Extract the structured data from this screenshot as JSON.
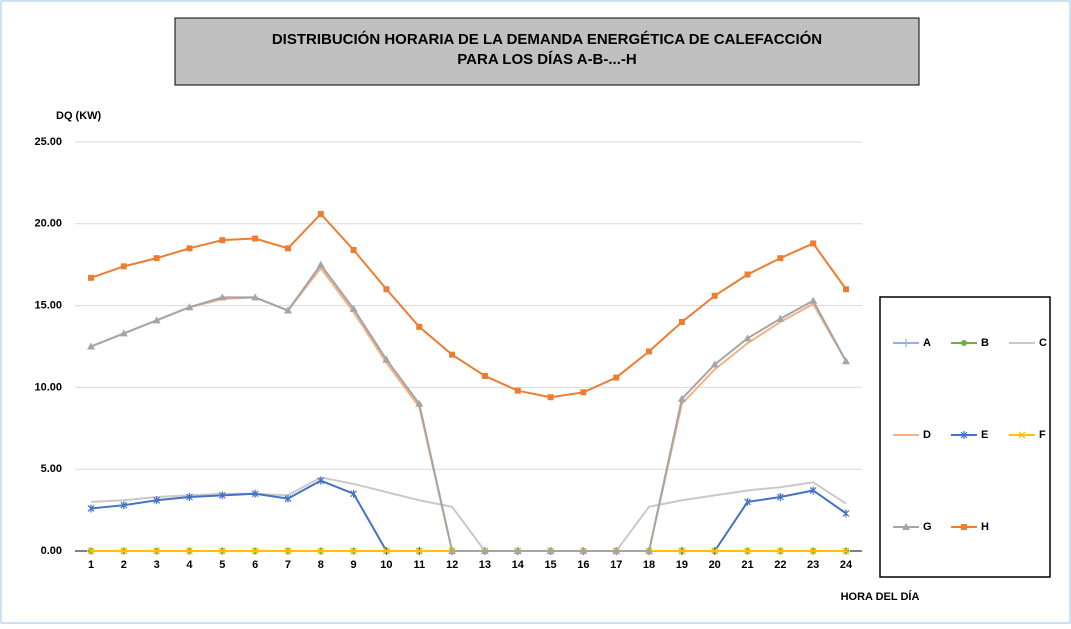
{
  "chart_data": {
    "type": "line",
    "title": [
      "DISTRIBUCIÓN HORARIA DE LA DEMANDA ENERGÉTICA DE CALEFACCIÓN",
      "PARA LOS DÍAS A-B-...-H"
    ],
    "y_label": "DQ (KW)",
    "x_label": "HORA DEL DÍA",
    "categories": [
      "1",
      "2",
      "3",
      "4",
      "5",
      "6",
      "7",
      "8",
      "9",
      "10",
      "11",
      "12",
      "13",
      "14",
      "15",
      "16",
      "17",
      "18",
      "19",
      "20",
      "21",
      "22",
      "23",
      "24"
    ],
    "ylim": [
      0,
      25
    ],
    "yticks": [
      {
        "value": 0,
        "label": "0.00"
      },
      {
        "value": 5,
        "label": "5.00"
      },
      {
        "value": 10,
        "label": "10.00"
      },
      {
        "value": 15,
        "label": "15.00"
      },
      {
        "value": 20,
        "label": "20.00"
      },
      {
        "value": 25,
        "label": "25.00"
      }
    ],
    "grid": true,
    "series": [
      {
        "name": "A",
        "color": "#8db4e2",
        "marker": "plus",
        "values": [
          0,
          0,
          0,
          0,
          0,
          0,
          0,
          0,
          0,
          0,
          0,
          0,
          0,
          0,
          0,
          0,
          0,
          0,
          0,
          0,
          0,
          0,
          0,
          0
        ]
      },
      {
        "name": "B",
        "color": "#70ad47",
        "marker": "circle",
        "values": [
          0,
          0,
          0,
          0,
          0,
          0,
          0,
          0,
          0,
          0,
          0,
          0,
          0,
          0,
          0,
          0,
          0,
          0,
          0,
          0,
          0,
          0,
          0,
          0
        ]
      },
      {
        "name": "C",
        "color": "#c9c9c9",
        "marker": "none",
        "values": [
          3.0,
          3.1,
          3.3,
          3.4,
          3.5,
          3.5,
          3.4,
          4.5,
          4.1,
          3.6,
          3.1,
          2.7,
          0,
          0,
          0,
          0,
          0,
          2.7,
          3.1,
          3.4,
          3.7,
          3.9,
          4.2,
          2.9
        ]
      },
      {
        "name": "D",
        "color": "#f4b183",
        "marker": "none",
        "values": [
          12.5,
          13.3,
          14.1,
          14.9,
          15.4,
          15.5,
          14.7,
          17.3,
          14.6,
          11.5,
          8.8,
          0,
          0,
          0,
          0,
          0,
          0,
          0,
          9.0,
          11.1,
          12.7,
          14.0,
          15.1,
          11.6
        ]
      },
      {
        "name": "E",
        "color": "#4472c4",
        "marker": "star",
        "values": [
          2.6,
          2.8,
          3.1,
          3.3,
          3.4,
          3.5,
          3.2,
          4.3,
          3.5,
          0,
          0,
          0,
          0,
          0,
          0,
          0,
          0,
          0,
          0,
          0,
          3.0,
          3.3,
          3.7,
          2.3
        ]
      },
      {
        "name": "F",
        "color": "#ffc000",
        "marker": "x",
        "values": [
          0,
          0,
          0,
          0,
          0,
          0,
          0,
          0,
          0,
          0,
          0,
          0,
          0,
          0,
          0,
          0,
          0,
          0,
          0,
          0,
          0,
          0,
          0,
          0
        ]
      },
      {
        "name": "G",
        "color": "#a5a5a5",
        "marker": "triangle",
        "values": [
          12.5,
          13.3,
          14.1,
          14.9,
          15.5,
          15.5,
          14.7,
          17.5,
          14.8,
          11.7,
          9.0,
          0,
          0,
          0,
          0,
          0,
          0,
          0,
          9.3,
          11.4,
          13.0,
          14.2,
          15.3,
          11.6
        ]
      },
      {
        "name": "H",
        "color": "#ed7d31",
        "marker": "square",
        "values": [
          16.7,
          17.4,
          17.9,
          18.5,
          19.0,
          19.1,
          18.5,
          20.6,
          18.4,
          16.0,
          13.7,
          12.0,
          10.7,
          9.8,
          9.4,
          9.7,
          10.6,
          12.2,
          14.0,
          15.6,
          16.9,
          17.9,
          18.8,
          16.0
        ]
      }
    ]
  }
}
